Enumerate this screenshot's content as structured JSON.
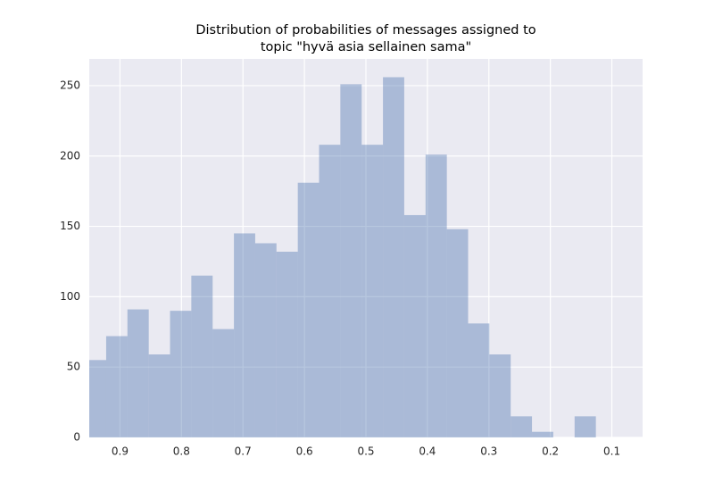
{
  "chart_data": {
    "type": "histogram",
    "title": [
      "Distribution of probabilities of messages assigned to",
      "topic \"hyvä asia sellainen sama\""
    ],
    "bins": [
      0.957,
      0.9225,
      0.8879,
      0.8532,
      0.8186,
      0.784,
      0.7493,
      0.7147,
      0.6801,
      0.6455,
      0.6108,
      0.5762,
      0.5416,
      0.5069,
      0.4723,
      0.4377,
      0.403,
      0.3684,
      0.3338,
      0.2992,
      0.2645,
      0.2299,
      0.1953,
      0.1606,
      0.126
    ],
    "values": [
      55,
      72,
      91,
      59,
      90,
      115,
      77,
      145,
      138,
      132,
      181,
      208,
      251,
      208,
      256,
      158,
      201,
      148,
      81,
      59,
      15,
      4,
      0,
      15
    ],
    "color": "#4c72b0",
    "opacity": 0.4,
    "xlim": [
      0.95,
      0.05
    ],
    "xticks": [
      0.9,
      0.8,
      0.7,
      0.6,
      0.5,
      0.4,
      0.3,
      0.2,
      0.1
    ],
    "ylim": [
      0,
      269
    ],
    "yticks": [
      0,
      50,
      100,
      150,
      200,
      250
    ],
    "grid": true
  }
}
